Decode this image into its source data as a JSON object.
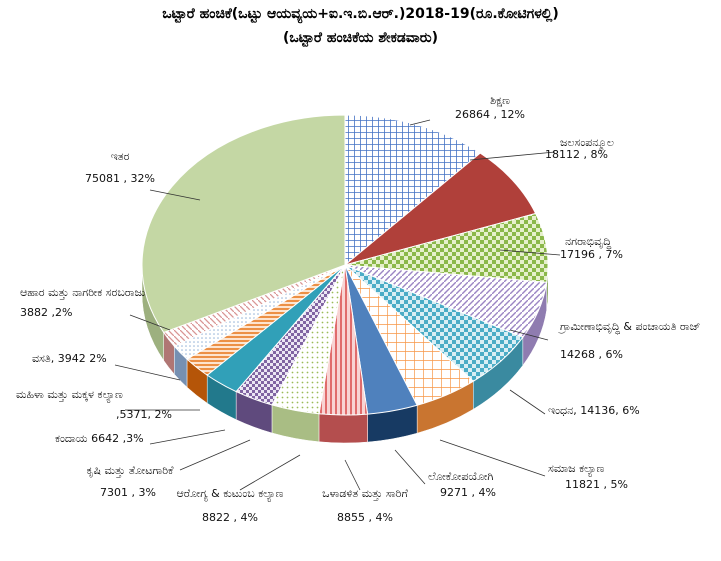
{
  "title": "ಒಟ್ಟಾರೆ ಹಂಚಿಕೆ(ಒಟ್ಟು ಆಯವ್ಯಯ+ಐ.ಇ.ಬಿ.ಆರ್.)2018-19(ರೂ.ಕೋಟಿಗಳಲ್ಲಿ)",
  "subtitle": "(ಒಟ್ಟಾರೆ ಹಂಚಿಕೆಯ ಶೇಕಡವಾರು)",
  "chart_data": {
    "type": "pie",
    "title": "ಒಟ್ಟಾರೆ ಹಂಚಿಕೆ(ಒಟ್ಟು ಆಯವ್ಯಯ+ಐ.ಇ.ಬಿ.ಆರ್.)2018-19(ರೂ.ಕೋಟಿಗಳಲ್ಲಿ)",
    "subtitle": "(ಒಟ್ಟಾರೆ ಹಂಚಿಕೆಯ ಶೇಕಡವಾರು)",
    "slices": [
      {
        "label": "ಶಿಕ್ಷಣ",
        "value": 26864,
        "percent": "12%",
        "value_text": "26864 , 12%",
        "color": "#4472c4"
      },
      {
        "label": "ಜಲಸಂಪನ್ಮೂಲ",
        "value": 18112,
        "percent": "8%",
        "value_text": "18112 , 8%",
        "color": "#b0403a"
      },
      {
        "label": "ನಗರಾಭಿವೃದ್ಧಿ",
        "value": 17196,
        "percent": "7%",
        "value_text": "17196 , 7%",
        "color": "#8bb84a"
      },
      {
        "label": "ಗ್ರಾಮೀಣಾಭಿವೃದ್ಧಿ & ಪಂಚಾಯತಿ ರಾಜ್",
        "value": 14268,
        "percent": "6%",
        "value_text": "14268 , 6%",
        "color": "#b8a7d4"
      },
      {
        "label": "ಇಂಧನ",
        "value": 14136,
        "percent": "6%",
        "value_text": "ಇಂಧನ, 14136, 6%",
        "color": "#4bacc6"
      },
      {
        "label": "ಸಮಾಜ ಕಲ್ಯಾಣ",
        "value": 11821,
        "percent": "5%",
        "value_text": "11821 , 5%",
        "color": "#f79646"
      },
      {
        "label": "ಲೋಕೋಪಯೋಗಿ",
        "value": 9271,
        "percent": "4%",
        "value_text": "9271 , 4%",
        "color": "#1f497d"
      },
      {
        "label": "ಒಳಾಡಳಿತ ಮತ್ತು ಸಾರಿಗೆ",
        "value": 8855,
        "percent": "4%",
        "value_text": "8855 , 4%",
        "color": "#e06c6c"
      },
      {
        "label": "ಆರೋಗ್ಯ & ಕುಟುಂಬ ಕಲ್ಯಾಣ",
        "value": 8822,
        "percent": "4%",
        "value_text": "8822 , 4%",
        "color": "#d4e6b0"
      },
      {
        "label": "ಕೃಷಿ ಮತ್ತು ತೋಟಗಾರಿಕೆ",
        "value": 7301,
        "percent": "3%",
        "value_text": "7301 , 3%",
        "color": "#8064a2"
      },
      {
        "label": "ಕಂದಾಯ",
        "value": 6642,
        "percent": "3%",
        "value_text": "ಕಂದಾಯ 6642 ,3%",
        "color": "#31a0b8"
      },
      {
        "label": "ಮಹಿಳಾ ಮತ್ತು ಮಕ್ಕಳ ಕಲ್ಯಾಣ",
        "value": 5371,
        "percent": "2%",
        "value_text": ",5371, 2%",
        "color": "#e46c0a"
      },
      {
        "label": "ವಸತಿ",
        "value": 3942,
        "percent": "2%",
        "value_text": "ವಸತಿ, 3942 2%",
        "color": "#95b3d7"
      },
      {
        "label": "ಆಹಾರ ಮತ್ತು ನಾಗರೀಕ ಸರಬರಾಜು",
        "value": 3882,
        "percent": "2%",
        "value_text": "3882 ,2%",
        "color": "#d99694"
      },
      {
        "label": "ಇತರ",
        "value": 75081,
        "percent": "32%",
        "value_text": "75081 , 32%",
        "color": "#c4d7a4"
      }
    ]
  }
}
